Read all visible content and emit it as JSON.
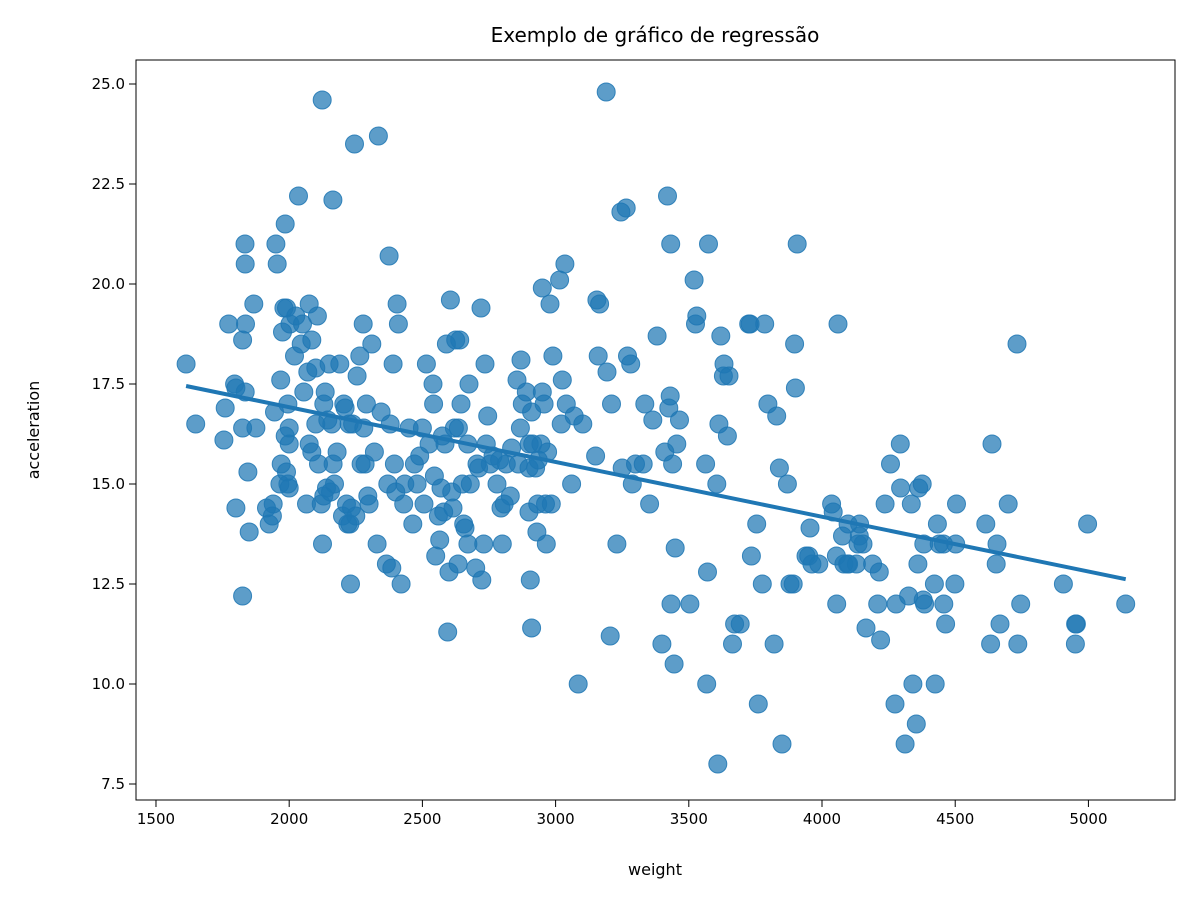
{
  "chart_data": {
    "type": "scatter",
    "title": "Exemplo de gráfico de regressão",
    "xlabel": "weight",
    "ylabel": "acceleration",
    "xlim": [
      1425,
      5325
    ],
    "ylim": [
      7.1,
      25.6
    ],
    "xticks": [
      1500,
      2000,
      2500,
      3000,
      3500,
      4000,
      4500,
      5000
    ],
    "xtick_labels": [
      "1500",
      "2000",
      "2500",
      "3000",
      "3500",
      "4000",
      "4500",
      "5000"
    ],
    "yticks": [
      7.5,
      10.0,
      12.5,
      15.0,
      17.5,
      20.0,
      22.5,
      25.0
    ],
    "ytick_labels": [
      "7.5",
      "10.0",
      "12.5",
      "15.0",
      "17.5",
      "20.0",
      "22.5",
      "25.0"
    ],
    "grid": false,
    "colors": {
      "points": "#1f77b4",
      "line": "#1f77b4"
    },
    "regression_line": {
      "x": [
        1613,
        5140
      ],
      "y": [
        17.45,
        12.62
      ]
    },
    "points": [
      [
        1613,
        18.0
      ],
      [
        1649,
        16.5
      ],
      [
        1755,
        16.1
      ],
      [
        1760,
        16.9
      ],
      [
        1773,
        19.0
      ],
      [
        1795,
        17.5
      ],
      [
        1800,
        17.4
      ],
      [
        1800,
        14.4
      ],
      [
        1825,
        18.6
      ],
      [
        1825,
        16.4
      ],
      [
        1834,
        21.0
      ],
      [
        1836,
        19.0
      ],
      [
        1835,
        20.5
      ],
      [
        1845,
        15.3
      ],
      [
        1850,
        13.8
      ],
      [
        1867,
        19.5
      ],
      [
        1875,
        16.4
      ],
      [
        1825,
        12.2
      ],
      [
        1835,
        17.3
      ],
      [
        1915,
        14.4
      ],
      [
        1925,
        14.0
      ],
      [
        1937,
        14.2
      ],
      [
        1940,
        14.5
      ],
      [
        1945,
        16.8
      ],
      [
        1950,
        21.0
      ],
      [
        1955,
        20.5
      ],
      [
        1965,
        15.0
      ],
      [
        1968,
        17.6
      ],
      [
        1970,
        15.5
      ],
      [
        1975,
        18.8
      ],
      [
        1980,
        19.4
      ],
      [
        1985,
        16.2
      ],
      [
        1990,
        15.3
      ],
      [
        1995,
        15.0
      ],
      [
        2000,
        16.0
      ],
      [
        1995,
        17.0
      ],
      [
        1985,
        21.5
      ],
      [
        1990,
        19.4
      ],
      [
        2000,
        14.9
      ],
      [
        2000,
        16.4
      ],
      [
        2003,
        19.0
      ],
      [
        2020,
        18.2
      ],
      [
        2025,
        19.2
      ],
      [
        2035,
        22.2
      ],
      [
        2045,
        18.5
      ],
      [
        2050,
        19.0
      ],
      [
        2055,
        17.3
      ],
      [
        2065,
        14.5
      ],
      [
        2070,
        17.8
      ],
      [
        2075,
        16.0
      ],
      [
        2075,
        19.5
      ],
      [
        2085,
        18.6
      ],
      [
        2085,
        15.8
      ],
      [
        2100,
        16.5
      ],
      [
        2100,
        17.9
      ],
      [
        2106,
        19.2
      ],
      [
        2110,
        15.5
      ],
      [
        2120,
        14.5
      ],
      [
        2124,
        24.6
      ],
      [
        2125,
        13.5
      ],
      [
        2130,
        14.7
      ],
      [
        2130,
        17.0
      ],
      [
        2135,
        17.3
      ],
      [
        2140,
        14.9
      ],
      [
        2145,
        16.6
      ],
      [
        2150,
        18.0
      ],
      [
        2155,
        14.8
      ],
      [
        2160,
        16.5
      ],
      [
        2164,
        22.1
      ],
      [
        2165,
        15.5
      ],
      [
        2170,
        15.0
      ],
      [
        2180,
        15.8
      ],
      [
        2190,
        18.0
      ],
      [
        2200,
        14.2
      ],
      [
        2205,
        17.0
      ],
      [
        2210,
        16.9
      ],
      [
        2215,
        14.5
      ],
      [
        2220,
        14.0
      ],
      [
        2225,
        16.5
      ],
      [
        2228,
        14.0
      ],
      [
        2230,
        12.5
      ],
      [
        2234,
        14.4
      ],
      [
        2238,
        16.5
      ],
      [
        2245,
        23.5
      ],
      [
        2250,
        14.2
      ],
      [
        2255,
        17.7
      ],
      [
        2265,
        18.2
      ],
      [
        2270,
        15.5
      ],
      [
        2278,
        19.0
      ],
      [
        2280,
        16.4
      ],
      [
        2285,
        15.5
      ],
      [
        2290,
        17.0
      ],
      [
        2295,
        14.7
      ],
      [
        2300,
        14.5
      ],
      [
        2310,
        18.5
      ],
      [
        2320,
        15.8
      ],
      [
        2330,
        13.5
      ],
      [
        2335,
        23.7
      ],
      [
        2345,
        16.8
      ],
      [
        2365,
        13.0
      ],
      [
        2370,
        15.0
      ],
      [
        2375,
        20.7
      ],
      [
        2379,
        16.5
      ],
      [
        2385,
        12.9
      ],
      [
        2390,
        18.0
      ],
      [
        2395,
        15.5
      ],
      [
        2400,
        14.8
      ],
      [
        2405,
        19.5
      ],
      [
        2410,
        19.0
      ],
      [
        2420,
        12.5
      ],
      [
        2430,
        14.5
      ],
      [
        2434,
        15.0
      ],
      [
        2450,
        16.4
      ],
      [
        2464,
        14.0
      ],
      [
        2470,
        15.5
      ],
      [
        2480,
        15.0
      ],
      [
        2490,
        15.7
      ],
      [
        2500,
        16.4
      ],
      [
        2506,
        14.5
      ],
      [
        2515,
        18.0
      ],
      [
        2525,
        16.0
      ],
      [
        2540,
        17.5
      ],
      [
        2542,
        17.0
      ],
      [
        2545,
        15.2
      ],
      [
        2550,
        13.2
      ],
      [
        2560,
        14.2
      ],
      [
        2565,
        13.6
      ],
      [
        2570,
        14.9
      ],
      [
        2575,
        16.2
      ],
      [
        2580,
        14.3
      ],
      [
        2585,
        16.0
      ],
      [
        2590,
        18.5
      ],
      [
        2595,
        11.3
      ],
      [
        2600,
        12.8
      ],
      [
        2605,
        19.6
      ],
      [
        2610,
        14.8
      ],
      [
        2615,
        14.4
      ],
      [
        2620,
        16.4
      ],
      [
        2625,
        18.6
      ],
      [
        2634,
        13.0
      ],
      [
        2635,
        16.4
      ],
      [
        2640,
        18.6
      ],
      [
        2645,
        17.0
      ],
      [
        2650,
        15.0
      ],
      [
        2655,
        14.0
      ],
      [
        2660,
        13.9
      ],
      [
        2670,
        16.0
      ],
      [
        2671,
        13.5
      ],
      [
        2675,
        17.5
      ],
      [
        2680,
        15.0
      ],
      [
        2700,
        12.9
      ],
      [
        2705,
        15.5
      ],
      [
        2711,
        15.4
      ],
      [
        2720,
        19.4
      ],
      [
        2723,
        12.6
      ],
      [
        2730,
        13.5
      ],
      [
        2735,
        18.0
      ],
      [
        2740,
        16.0
      ],
      [
        2745,
        16.7
      ],
      [
        2755,
        15.5
      ],
      [
        2765,
        15.7
      ],
      [
        2780,
        15.0
      ],
      [
        2790,
        15.6
      ],
      [
        2795,
        14.4
      ],
      [
        2800,
        13.5
      ],
      [
        2807,
        14.5
      ],
      [
        2815,
        15.5
      ],
      [
        2830,
        14.7
      ],
      [
        2835,
        15.9
      ],
      [
        2855,
        17.6
      ],
      [
        2860,
        15.5
      ],
      [
        2868,
        16.4
      ],
      [
        2870,
        18.1
      ],
      [
        2875,
        17.0
      ],
      [
        2890,
        17.3
      ],
      [
        2900,
        15.4
      ],
      [
        2900,
        14.3
      ],
      [
        2901,
        16.0
      ],
      [
        2905,
        12.6
      ],
      [
        2910,
        11.4
      ],
      [
        2910,
        16.8
      ],
      [
        2914,
        16.0
      ],
      [
        2925,
        15.4
      ],
      [
        2930,
        13.8
      ],
      [
        2933,
        14.5
      ],
      [
        2935,
        15.6
      ],
      [
        2945,
        16.0
      ],
      [
        2950,
        19.9
      ],
      [
        2950,
        17.3
      ],
      [
        2957,
        17.0
      ],
      [
        2962,
        14.5
      ],
      [
        2965,
        13.5
      ],
      [
        2970,
        15.8
      ],
      [
        2979,
        19.5
      ],
      [
        2984,
        14.5
      ],
      [
        2990,
        18.2
      ],
      [
        3015,
        20.1
      ],
      [
        3021,
        16.5
      ],
      [
        3025,
        17.6
      ],
      [
        3035,
        20.5
      ],
      [
        3040,
        17.0
      ],
      [
        3060,
        15.0
      ],
      [
        3070,
        16.7
      ],
      [
        3085,
        10.0
      ],
      [
        3102,
        16.5
      ],
      [
        3150,
        15.7
      ],
      [
        3155,
        19.6
      ],
      [
        3160,
        18.2
      ],
      [
        3165,
        19.5
      ],
      [
        3190,
        24.8
      ],
      [
        3193,
        17.8
      ],
      [
        3205,
        11.2
      ],
      [
        3210,
        17.0
      ],
      [
        3230,
        13.5
      ],
      [
        3245,
        21.8
      ],
      [
        3250,
        15.4
      ],
      [
        3265,
        21.9
      ],
      [
        3270,
        18.2
      ],
      [
        3282,
        18.0
      ],
      [
        3288,
        15.0
      ],
      [
        3300,
        15.5
      ],
      [
        3329,
        15.5
      ],
      [
        3335,
        17.0
      ],
      [
        3353,
        14.5
      ],
      [
        3365,
        16.6
      ],
      [
        3381,
        18.7
      ],
      [
        3399,
        11.0
      ],
      [
        3410,
        15.8
      ],
      [
        3420,
        22.2
      ],
      [
        3425,
        16.9
      ],
      [
        3430,
        17.2
      ],
      [
        3432,
        21.0
      ],
      [
        3433,
        12.0
      ],
      [
        3439,
        15.5
      ],
      [
        3445,
        10.5
      ],
      [
        3449,
        13.4
      ],
      [
        3455,
        16.0
      ],
      [
        3465,
        16.6
      ],
      [
        3504,
        12.0
      ],
      [
        3520,
        20.1
      ],
      [
        3525,
        19.0
      ],
      [
        3530,
        19.2
      ],
      [
        3563,
        15.5
      ],
      [
        3567,
        10.0
      ],
      [
        3570,
        12.8
      ],
      [
        3574,
        21.0
      ],
      [
        3605,
        15.0
      ],
      [
        3609,
        8.0
      ],
      [
        3613,
        16.5
      ],
      [
        3620,
        18.7
      ],
      [
        3630,
        17.7
      ],
      [
        3632,
        18.0
      ],
      [
        3645,
        16.2
      ],
      [
        3651,
        17.7
      ],
      [
        3664,
        11.0
      ],
      [
        3672,
        11.5
      ],
      [
        3693,
        11.5
      ],
      [
        3725,
        19.0
      ],
      [
        3730,
        19.0
      ],
      [
        3735,
        13.2
      ],
      [
        3755,
        14.0
      ],
      [
        3761,
        9.5
      ],
      [
        3776,
        12.5
      ],
      [
        3785,
        19.0
      ],
      [
        3797,
        17.0
      ],
      [
        3820,
        11.0
      ],
      [
        3830,
        16.7
      ],
      [
        3840,
        15.4
      ],
      [
        3850,
        8.5
      ],
      [
        3870,
        15.0
      ],
      [
        3880,
        12.5
      ],
      [
        3892,
        12.5
      ],
      [
        3897,
        18.5
      ],
      [
        3900,
        17.4
      ],
      [
        3907,
        21.0
      ],
      [
        3940,
        13.2
      ],
      [
        3950,
        13.2
      ],
      [
        3955,
        13.9
      ],
      [
        3962,
        13.0
      ],
      [
        3988,
        13.0
      ],
      [
        4036,
        14.5
      ],
      [
        4042,
        14.3
      ],
      [
        4054,
        13.2
      ],
      [
        4055,
        12.0
      ],
      [
        4060,
        19.0
      ],
      [
        4077,
        13.7
      ],
      [
        4082,
        13.0
      ],
      [
        4096,
        13.0
      ],
      [
        4098,
        14.0
      ],
      [
        4100,
        13.0
      ],
      [
        4129,
        13.0
      ],
      [
        4135,
        13.5
      ],
      [
        4140,
        13.7
      ],
      [
        4141,
        14.0
      ],
      [
        4154,
        13.5
      ],
      [
        4165,
        11.4
      ],
      [
        4190,
        13.0
      ],
      [
        4209,
        12.0
      ],
      [
        4215,
        12.8
      ],
      [
        4220,
        11.1
      ],
      [
        4237,
        14.5
      ],
      [
        4257,
        15.5
      ],
      [
        4274,
        9.5
      ],
      [
        4278,
        12.0
      ],
      [
        4295,
        14.9
      ],
      [
        4294,
        16.0
      ],
      [
        4312,
        8.5
      ],
      [
        4325,
        12.2
      ],
      [
        4335,
        14.5
      ],
      [
        4341,
        10.0
      ],
      [
        4354,
        9.0
      ],
      [
        4360,
        13.0
      ],
      [
        4363,
        14.9
      ],
      [
        4376,
        15.0
      ],
      [
        4380,
        12.1
      ],
      [
        4382,
        13.5
      ],
      [
        4385,
        12.0
      ],
      [
        4422,
        12.5
      ],
      [
        4425,
        10.0
      ],
      [
        4433,
        14.0
      ],
      [
        4440,
        13.5
      ],
      [
        4456,
        13.5
      ],
      [
        4457,
        12.0
      ],
      [
        4464,
        11.5
      ],
      [
        4499,
        12.5
      ],
      [
        4502,
        13.5
      ],
      [
        4505,
        14.5
      ],
      [
        4615,
        14.0
      ],
      [
        4633,
        11.0
      ],
      [
        4638,
        16.0
      ],
      [
        4654,
        13.0
      ],
      [
        4657,
        13.5
      ],
      [
        4668,
        11.5
      ],
      [
        4699,
        14.5
      ],
      [
        4732,
        18.5
      ],
      [
        4735,
        11.0
      ],
      [
        4746,
        12.0
      ],
      [
        4906,
        12.5
      ],
      [
        4951,
        11.0
      ],
      [
        4952,
        11.5
      ],
      [
        4955,
        11.5
      ],
      [
        4997,
        14.0
      ],
      [
        5140,
        12.0
      ]
    ]
  }
}
